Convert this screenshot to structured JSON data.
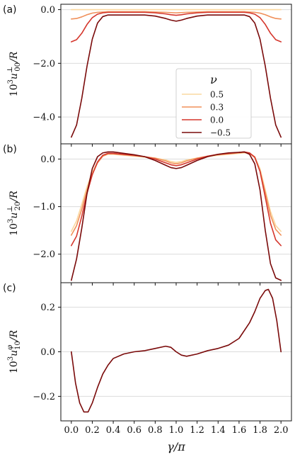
{
  "chart_data": [
    {
      "panel_label": "(a)",
      "type": "line",
      "ylabel": "10³u₀₀⊥/R",
      "ylabel_parts": {
        "prefix": "10",
        "exp": "3",
        "sym": "u",
        "sup": "⊥",
        "sub": "00",
        "suffix": "/R"
      },
      "ylim": [
        -5.0,
        0.2
      ],
      "xlim": [
        -0.1,
        2.1
      ],
      "yticks": [
        0.0,
        -2.0,
        -4.0
      ],
      "ytick_labels": [
        "0.0",
        "−2.0",
        "−4.0"
      ],
      "grid": "horizontal",
      "legend": {
        "title": "ν",
        "placement": "inside-lower-center",
        "entries": [
          "0.5",
          "0.3",
          "0.0",
          "−0.5"
        ]
      },
      "x": [
        0.0,
        0.05,
        0.1,
        0.15,
        0.2,
        0.25,
        0.3,
        0.35,
        0.4,
        0.5,
        0.6,
        0.7,
        0.8,
        0.9,
        0.95,
        1.0,
        1.05,
        1.1,
        1.2,
        1.3,
        1.4,
        1.5,
        1.6,
        1.65,
        1.7,
        1.75,
        1.8,
        1.85,
        1.9,
        1.95,
        2.0
      ],
      "series": [
        {
          "name": "0.5",
          "color": "#fad8a0",
          "values": [
            0,
            0,
            0,
            0,
            0,
            0,
            0,
            0,
            0,
            0,
            0,
            0,
            0,
            0,
            0,
            0,
            0,
            0,
            0,
            0,
            0,
            0,
            0,
            0,
            0,
            0,
            0,
            0,
            0,
            0,
            0
          ]
        },
        {
          "name": "0.3",
          "color": "#f0905a",
          "values": [
            -0.35,
            -0.33,
            -0.27,
            -0.19,
            -0.13,
            -0.1,
            -0.09,
            -0.08,
            -0.08,
            -0.08,
            -0.08,
            -0.08,
            -0.09,
            -0.1,
            -0.11,
            -0.12,
            -0.11,
            -0.1,
            -0.09,
            -0.08,
            -0.08,
            -0.08,
            -0.08,
            -0.08,
            -0.09,
            -0.1,
            -0.13,
            -0.19,
            -0.27,
            -0.33,
            -0.35
          ]
        },
        {
          "name": "0.0",
          "color": "#d5362c",
          "values": [
            -1.2,
            -1.12,
            -0.88,
            -0.55,
            -0.3,
            -0.17,
            -0.12,
            -0.1,
            -0.1,
            -0.1,
            -0.1,
            -0.1,
            -0.12,
            -0.16,
            -0.19,
            -0.21,
            -0.19,
            -0.16,
            -0.12,
            -0.1,
            -0.1,
            -0.1,
            -0.1,
            -0.1,
            -0.12,
            -0.17,
            -0.3,
            -0.55,
            -0.88,
            -1.12,
            -1.2
          ]
        },
        {
          "name": "−0.5",
          "color": "#7a0a0a",
          "values": [
            -4.75,
            -4.3,
            -3.3,
            -2.1,
            -1.1,
            -0.5,
            -0.26,
            -0.2,
            -0.2,
            -0.2,
            -0.2,
            -0.2,
            -0.24,
            -0.33,
            -0.39,
            -0.43,
            -0.39,
            -0.33,
            -0.24,
            -0.2,
            -0.2,
            -0.2,
            -0.2,
            -0.2,
            -0.26,
            -0.5,
            -1.1,
            -2.1,
            -3.3,
            -4.3,
            -4.75
          ]
        }
      ]
    },
    {
      "panel_label": "(b)",
      "type": "line",
      "ylabel": "10³u₂₀⊥/R",
      "ylabel_parts": {
        "prefix": "10",
        "exp": "3",
        "sym": "u",
        "sup": "⊥",
        "sub": "20",
        "suffix": "/R"
      },
      "ylim": [
        -2.6,
        0.32
      ],
      "xlim": [
        -0.1,
        2.1
      ],
      "yticks": [
        0.0,
        -1.0,
        -2.0
      ],
      "ytick_labels": [
        "0.0",
        "−1.0",
        "−2.0"
      ],
      "grid": "horizontal",
      "x": [
        0.0,
        0.05,
        0.1,
        0.15,
        0.2,
        0.25,
        0.3,
        0.35,
        0.4,
        0.5,
        0.6,
        0.7,
        0.8,
        0.9,
        0.95,
        1.0,
        1.05,
        1.1,
        1.2,
        1.3,
        1.4,
        1.5,
        1.6,
        1.65,
        1.7,
        1.75,
        1.8,
        1.85,
        1.9,
        1.95,
        2.0
      ],
      "series": [
        {
          "name": "0.5",
          "color": "#fad8a0",
          "values": [
            -1.52,
            -1.3,
            -0.95,
            -0.58,
            -0.28,
            -0.06,
            0.06,
            0.1,
            0.1,
            0.08,
            0.06,
            0.04,
            0.02,
            -0.02,
            -0.05,
            -0.07,
            -0.05,
            -0.02,
            0.02,
            0.05,
            0.08,
            0.1,
            0.12,
            0.13,
            0.12,
            0.05,
            -0.2,
            -0.65,
            -1.1,
            -1.4,
            -1.52
          ]
        },
        {
          "name": "0.3",
          "color": "#f0905a",
          "values": [
            -1.6,
            -1.4,
            -1.05,
            -0.65,
            -0.32,
            -0.08,
            0.06,
            0.11,
            0.11,
            0.09,
            0.07,
            0.05,
            0.02,
            -0.04,
            -0.08,
            -0.1,
            -0.08,
            -0.04,
            0.02,
            0.06,
            0.09,
            0.11,
            0.13,
            0.14,
            0.12,
            0.03,
            -0.25,
            -0.7,
            -1.18,
            -1.48,
            -1.6
          ]
        },
        {
          "name": "0.0",
          "color": "#d5362c",
          "values": [
            -1.82,
            -1.62,
            -1.2,
            -0.72,
            -0.33,
            -0.06,
            0.08,
            0.12,
            0.12,
            0.1,
            0.08,
            0.05,
            0.0,
            -0.08,
            -0.12,
            -0.14,
            -0.12,
            -0.08,
            0.0,
            0.06,
            0.1,
            0.12,
            0.14,
            0.15,
            0.13,
            0.04,
            -0.26,
            -0.8,
            -1.35,
            -1.7,
            -1.82
          ]
        },
        {
          "name": "−0.5",
          "color": "#7a0a0a",
          "values": [
            -2.55,
            -2.1,
            -1.45,
            -0.72,
            -0.2,
            0.05,
            0.13,
            0.15,
            0.15,
            0.12,
            0.09,
            0.05,
            -0.03,
            -0.13,
            -0.18,
            -0.2,
            -0.18,
            -0.13,
            -0.03,
            0.05,
            0.1,
            0.13,
            0.14,
            0.15,
            0.1,
            -0.1,
            -0.65,
            -1.5,
            -2.2,
            -2.5,
            -2.55
          ]
        }
      ]
    },
    {
      "panel_label": "(c)",
      "type": "line",
      "ylabel": "10³u₁₀^φ/R",
      "ylabel_parts": {
        "prefix": "10",
        "exp": "3",
        "sym": "u",
        "sup": "φ",
        "sub": "10",
        "suffix": "/R"
      },
      "ylim": [
        -0.31,
        0.31
      ],
      "xlim": [
        -0.1,
        2.1
      ],
      "yticks": [
        0.2,
        0.0,
        -0.2
      ],
      "ytick_labels": [
        "0.2",
        "0.0",
        "−0.2"
      ],
      "xticks": [
        0.0,
        0.2,
        0.4,
        0.6,
        0.8,
        1.0,
        1.2,
        1.4,
        1.6,
        1.8,
        2.0
      ],
      "xtick_labels": [
        "0.0",
        "0.2",
        "0.4",
        "0.6",
        "0.8",
        "1.0",
        "1.2",
        "1.4",
        "1.6",
        "1.8",
        "2.0"
      ],
      "xlabel": "γ/π",
      "grid": "horizontal",
      "x": [
        0.0,
        0.04,
        0.08,
        0.12,
        0.16,
        0.2,
        0.25,
        0.3,
        0.35,
        0.4,
        0.5,
        0.6,
        0.7,
        0.8,
        0.9,
        0.95,
        1.0,
        1.05,
        1.1,
        1.2,
        1.3,
        1.4,
        1.5,
        1.6,
        1.7,
        1.75,
        1.8,
        1.85,
        1.88,
        1.92,
        1.96,
        2.0
      ],
      "series": [
        {
          "name": "",
          "color": "#7a0a0a",
          "values": [
            0.0,
            -0.14,
            -0.23,
            -0.27,
            -0.27,
            -0.23,
            -0.16,
            -0.1,
            -0.06,
            -0.03,
            -0.01,
            0.0,
            0.005,
            0.015,
            0.025,
            0.02,
            0.0,
            -0.015,
            -0.02,
            -0.01,
            0.005,
            0.015,
            0.03,
            0.06,
            0.13,
            0.18,
            0.24,
            0.275,
            0.28,
            0.24,
            0.14,
            0.0
          ]
        }
      ]
    }
  ]
}
